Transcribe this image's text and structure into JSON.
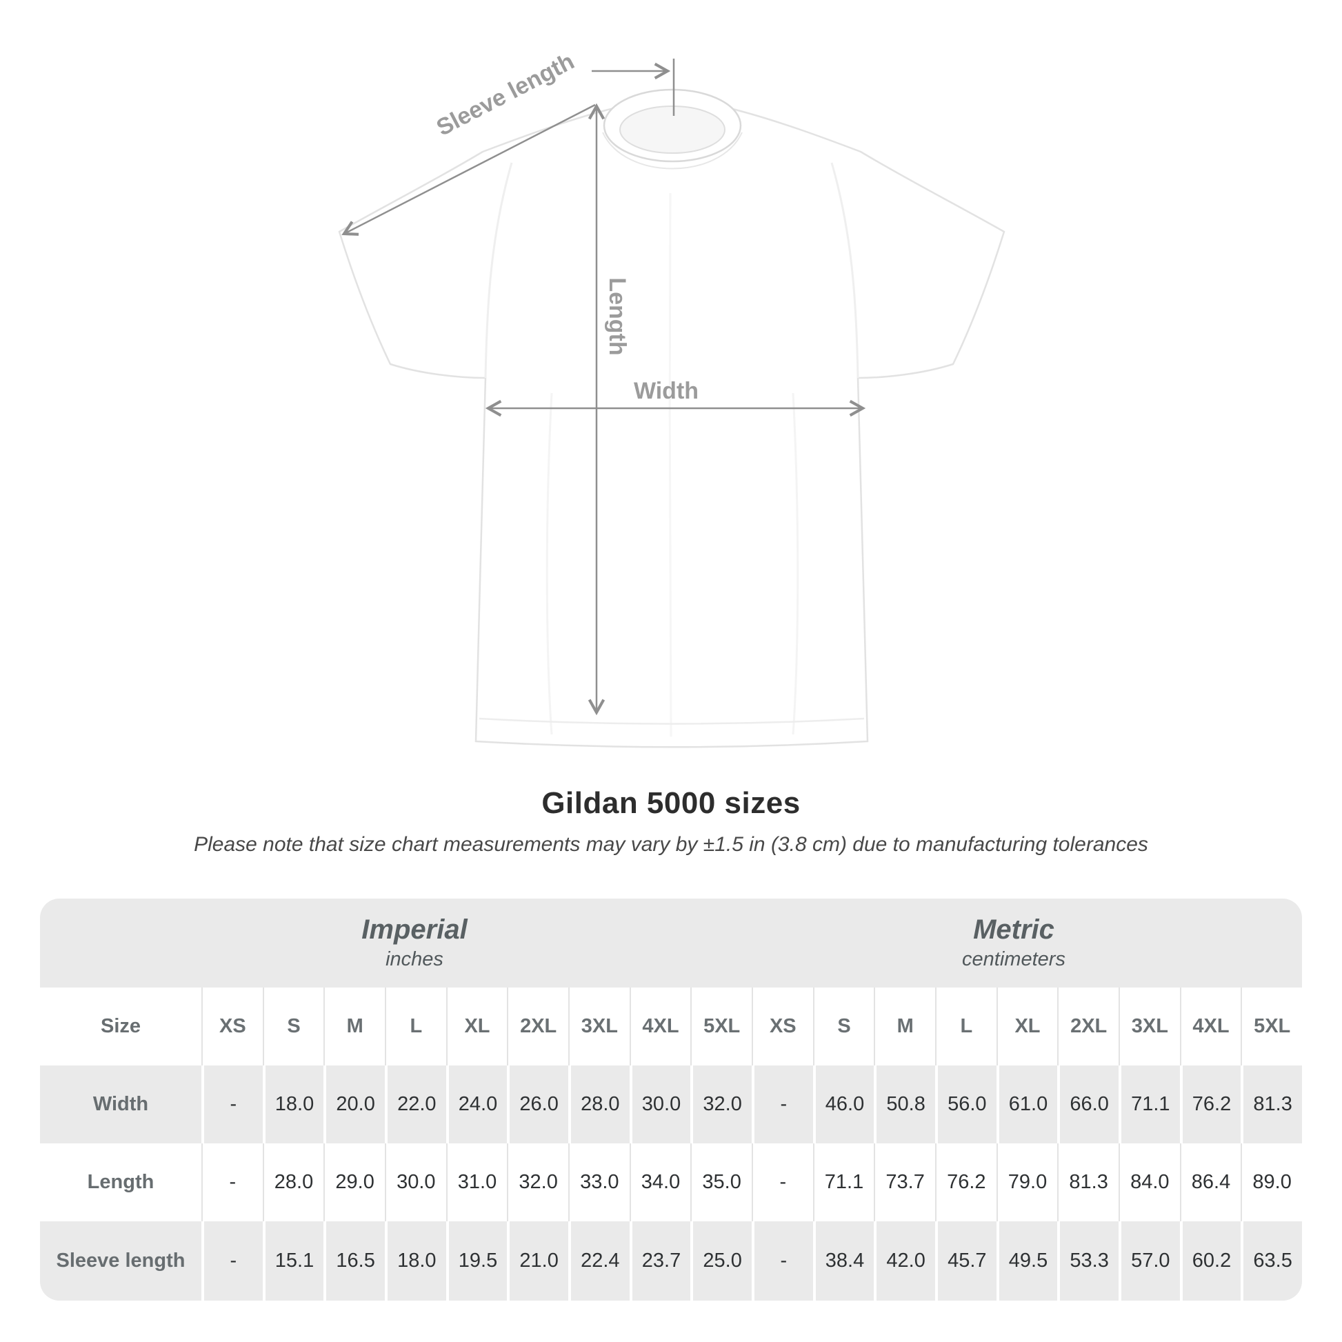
{
  "diagram": {
    "labels": {
      "sleeve_length": "Sleeve length",
      "length": "Length",
      "width": "Width"
    }
  },
  "title": "Gildan 5000 sizes",
  "subtitle": "Please note that size chart measurements may vary by ±1.5 in (3.8 cm) due to manufacturing tolerances",
  "table": {
    "size_header": "Size",
    "sections": [
      {
        "name": "Imperial",
        "unit": "inches"
      },
      {
        "name": "Metric",
        "unit": "centimeters"
      }
    ],
    "sizes": [
      "XS",
      "S",
      "M",
      "L",
      "XL",
      "2XL",
      "3XL",
      "4XL",
      "5XL"
    ],
    "rows": [
      {
        "label": "Width",
        "imperial": [
          "-",
          "18.0",
          "20.0",
          "22.0",
          "24.0",
          "26.0",
          "28.0",
          "30.0",
          "32.0"
        ],
        "metric": [
          "-",
          "46.0",
          "50.8",
          "56.0",
          "61.0",
          "66.0",
          "71.1",
          "76.2",
          "81.3"
        ]
      },
      {
        "label": "Length",
        "imperial": [
          "-",
          "28.0",
          "29.0",
          "30.0",
          "31.0",
          "32.0",
          "33.0",
          "34.0",
          "35.0"
        ],
        "metric": [
          "-",
          "71.1",
          "73.7",
          "76.2",
          "79.0",
          "81.3",
          "84.0",
          "86.4",
          "89.0"
        ]
      },
      {
        "label": "Sleeve length",
        "imperial": [
          "-",
          "15.1",
          "16.5",
          "18.0",
          "19.5",
          "21.0",
          "22.4",
          "23.7",
          "25.0"
        ],
        "metric": [
          "-",
          "38.4",
          "42.0",
          "45.7",
          "49.5",
          "53.3",
          "57.0",
          "60.2",
          "63.5"
        ]
      }
    ]
  },
  "colors": {
    "table_gray": "#eaeaea",
    "annotation_gray": "#8f8f8f",
    "label_gray": "#9b9b9b",
    "header_text": "#596063",
    "value_text": "#2e3133",
    "title_text": "#2d2d2d"
  }
}
